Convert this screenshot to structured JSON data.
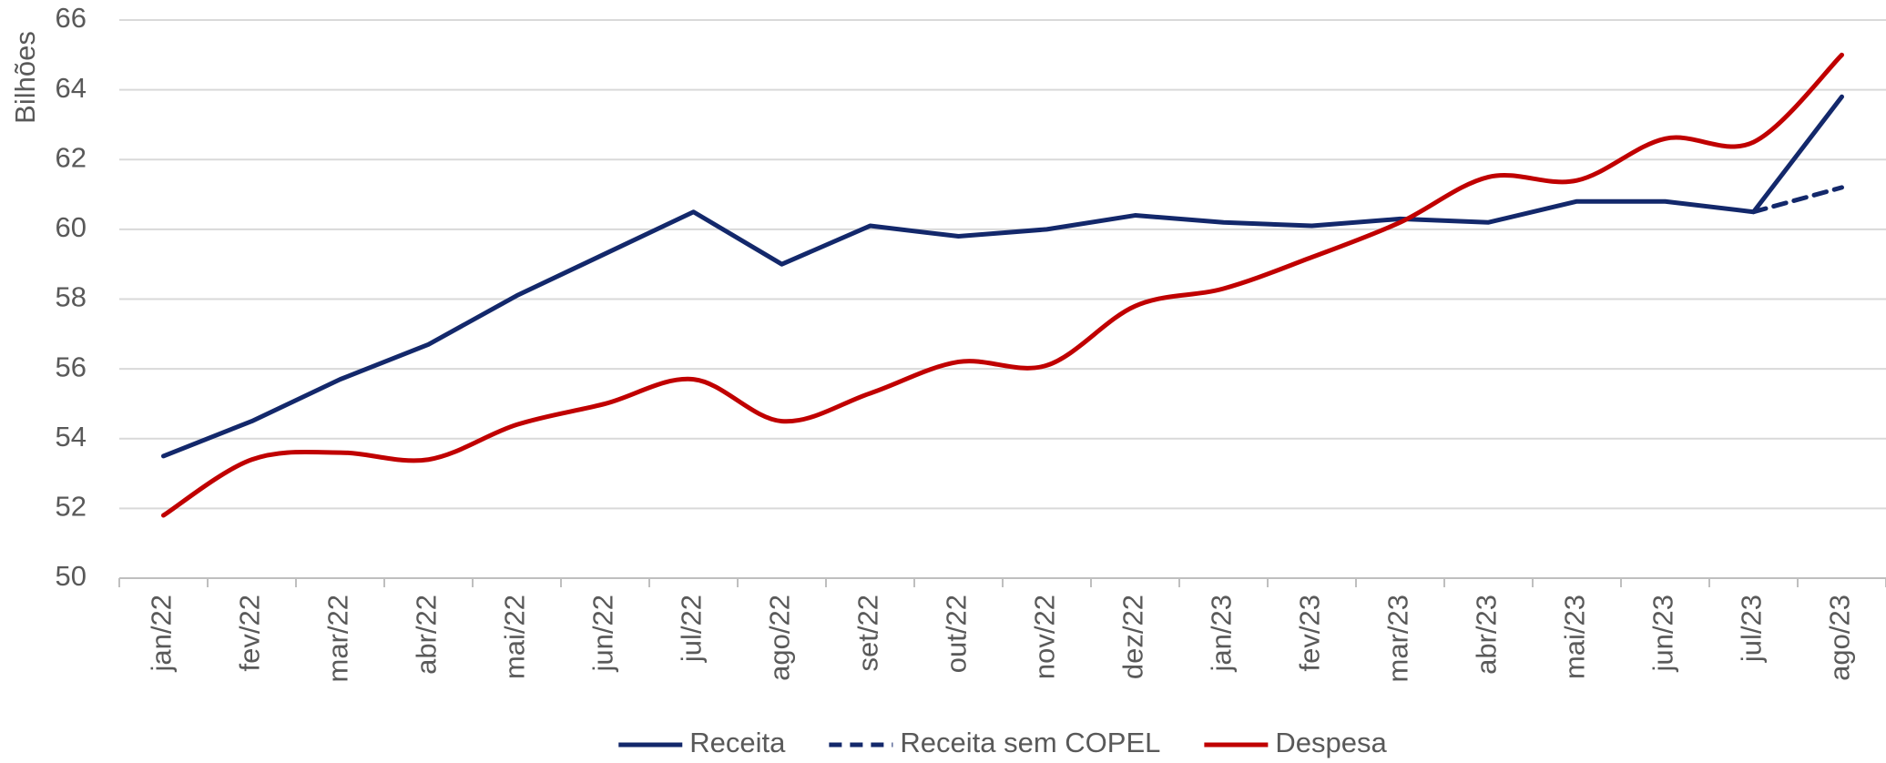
{
  "chart_data": {
    "type": "line",
    "y_label": "Bilhões",
    "categories": [
      "jan/22",
      "fev/22",
      "mar/22",
      "abr/22",
      "mai/22",
      "jun/22",
      "jul/22",
      "ago/22",
      "set/22",
      "out/22",
      "nov/22",
      "dez/22",
      "jan/23",
      "fev/23",
      "mar/23",
      "abr/23",
      "mai/23",
      "jun/23",
      "jul/23",
      "ago/23"
    ],
    "series": [
      {
        "name": "Receita",
        "color": "#13286b",
        "dash": false,
        "smooth": false,
        "values": [
          53.5,
          54.5,
          55.7,
          56.7,
          58.1,
          59.3,
          60.5,
          59.0,
          60.1,
          59.8,
          60.0,
          60.4,
          60.2,
          60.1,
          60.3,
          60.2,
          60.8,
          60.8,
          60.5,
          63.8
        ]
      },
      {
        "name": "Receita sem COPEL",
        "color": "#13286b",
        "dash": true,
        "smooth": false,
        "values": [
          null,
          null,
          null,
          null,
          null,
          null,
          null,
          null,
          null,
          null,
          null,
          null,
          null,
          null,
          null,
          null,
          null,
          null,
          60.5,
          61.2
        ]
      },
      {
        "name": "Despesa",
        "color": "#c00000",
        "dash": false,
        "smooth": true,
        "values": [
          51.8,
          53.4,
          53.6,
          53.4,
          54.4,
          55.0,
          55.7,
          54.5,
          55.3,
          56.2,
          56.1,
          57.8,
          58.3,
          59.2,
          60.2,
          61.5,
          61.4,
          62.6,
          62.5,
          65.0
        ]
      }
    ],
    "ylim": [
      50,
      66
    ],
    "yticks": [
      50,
      52,
      54,
      56,
      58,
      60,
      62,
      64,
      66
    ],
    "grid": true
  }
}
